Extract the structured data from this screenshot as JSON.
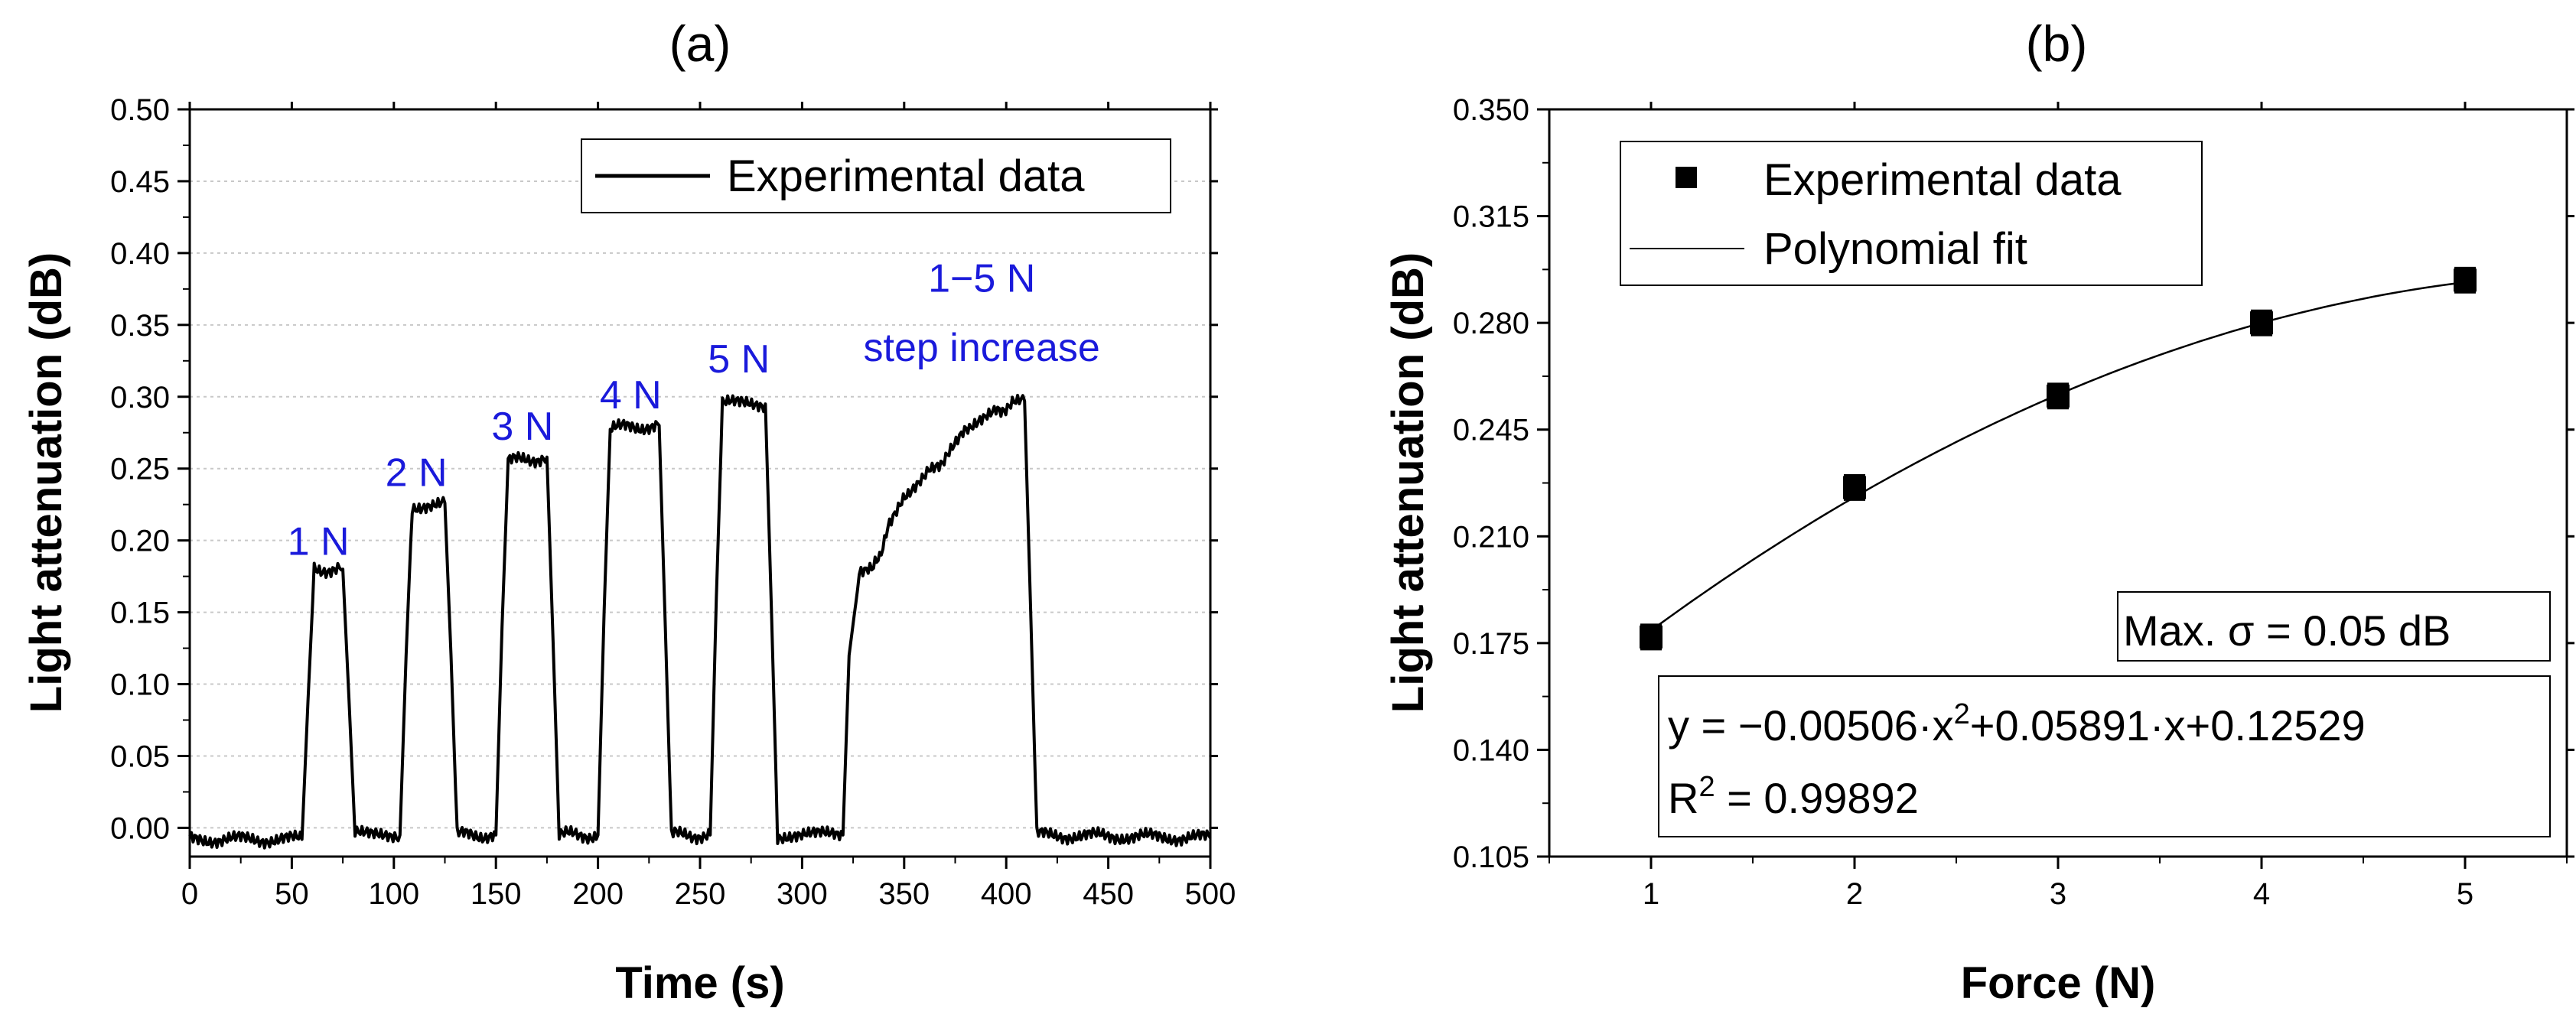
{
  "chart_data": [
    {
      "panel": "(a)",
      "type": "line",
      "title": "(a)",
      "xlabel": "Time (s)",
      "ylabel": "Light attenuation (dB)",
      "xlim": [
        0,
        500
      ],
      "ylim": [
        -0.02,
        0.5
      ],
      "xticks": [
        0,
        50,
        100,
        150,
        200,
        250,
        300,
        350,
        400,
        450,
        500
      ],
      "yticks": [
        0.0,
        0.05,
        0.1,
        0.15,
        0.2,
        0.25,
        0.3,
        0.35,
        0.4,
        0.45,
        0.5
      ],
      "ytick_labels": [
        "0.00",
        "0.05",
        "0.10",
        "0.15",
        "0.20",
        "0.25",
        "0.30",
        "0.35",
        "0.40",
        "0.45",
        "0.50"
      ],
      "xtick_labels": [
        "0",
        "50",
        "100",
        "150",
        "200",
        "250",
        "300",
        "350",
        "400",
        "450",
        "500"
      ],
      "grid": "horizontal dotted",
      "legend": {
        "position": "top-right",
        "entries": [
          "Experimental data"
        ]
      },
      "series": [
        {
          "name": "Experimental data",
          "x": [
            0,
            55,
            58,
            61,
            75,
            78,
            81,
            103,
            106,
            109,
            125,
            128,
            131,
            150,
            153,
            156,
            175,
            178,
            181,
            200,
            203,
            206,
            230,
            233,
            236,
            255,
            258,
            261,
            282,
            285,
            288,
            320,
            323,
            328,
            335,
            338,
            342,
            348,
            352,
            358,
            362,
            368,
            372,
            378,
            382,
            388,
            395,
            403,
            409,
            412,
            415,
            500
          ],
          "values": [
            -0.008,
            -0.008,
            0.09,
            0.18,
            0.18,
            0.09,
            -0.005,
            -0.005,
            0.12,
            0.224,
            0.226,
            0.12,
            -0.005,
            -0.005,
            0.14,
            0.255,
            0.258,
            0.13,
            -0.005,
            -0.005,
            0.15,
            0.278,
            0.28,
            0.14,
            -0.005,
            -0.005,
            0.16,
            0.295,
            0.295,
            0.15,
            -0.005,
            -0.005,
            0.12,
            0.175,
            0.18,
            0.19,
            0.21,
            0.225,
            0.23,
            0.24,
            0.252,
            0.255,
            0.26,
            0.272,
            0.278,
            0.285,
            0.29,
            0.295,
            0.297,
            0.15,
            -0.005,
            -0.007
          ]
        }
      ],
      "annotations": [
        {
          "text": "1 N",
          "x": 63,
          "y": 0.19
        },
        {
          "text": "2 N",
          "x": 111,
          "y": 0.238
        },
        {
          "text": "3 N",
          "x": 163,
          "y": 0.27
        },
        {
          "text": "4 N",
          "x": 216,
          "y": 0.292
        },
        {
          "text": "5 N",
          "x": 269,
          "y": 0.317
        },
        {
          "text": "1−5 N",
          "x": 388,
          "y": 0.373
        },
        {
          "text": "step increase",
          "x": 388,
          "y": 0.325
        }
      ]
    },
    {
      "panel": "(b)",
      "type": "scatter",
      "title": "(b)",
      "xlabel": "Force (N)",
      "ylabel": "Light attenuation (dB)",
      "xlim": [
        0.5,
        5.5
      ],
      "ylim": [
        0.105,
        0.35
      ],
      "xticks": [
        1,
        2,
        3,
        4,
        5
      ],
      "xtick_labels": [
        "1",
        "2",
        "3",
        "4",
        "5"
      ],
      "yticks": [
        0.105,
        0.14,
        0.175,
        0.21,
        0.245,
        0.28,
        0.315,
        0.35
      ],
      "ytick_labels": [
        "0.105",
        "0.140",
        "0.175",
        "0.210",
        "0.245",
        "0.280",
        "0.315",
        "0.350"
      ],
      "legend": {
        "position": "top-left",
        "entries": [
          "Experimental data",
          "Polynomial fit"
        ]
      },
      "series": [
        {
          "name": "Experimental data",
          "x": [
            1,
            2,
            3,
            4,
            5
          ],
          "values": [
            0.177,
            0.226,
            0.256,
            0.28,
            0.294
          ],
          "error": [
            0.004,
            0.004,
            0.004,
            0.004,
            0.004
          ]
        },
        {
          "name": "Polynomial fit",
          "fit": "y = -0.00506*x^2 + 0.05891*x + 0.12529",
          "coefficients": [
            -0.00506,
            0.05891,
            0.12529
          ],
          "x_range": [
            1,
            5
          ]
        }
      ],
      "text_boxes": {
        "sigma": "Max. σ = 0.05 dB",
        "equation_main": "y = −0.00506·x",
        "equation_exp": "2",
        "equation_rest": "+0.05891·x+0.12529",
        "r2_label": "R",
        "r2_exp": "2",
        "r2_rest": " = 0.99892"
      }
    }
  ]
}
